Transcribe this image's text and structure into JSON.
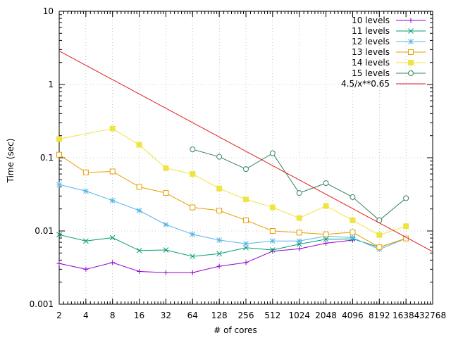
{
  "chart_data": {
    "type": "line",
    "title": "",
    "xlabel": "# of cores",
    "ylabel": "Time (sec)",
    "x_scale": "log2",
    "y_scale": "log10",
    "xlim": [
      2,
      32768
    ],
    "ylim": [
      0.001,
      10
    ],
    "grid": true,
    "legend_position": "top-right",
    "x_ticks": [
      2,
      4,
      8,
      16,
      32,
      64,
      128,
      256,
      512,
      1024,
      2048,
      4096,
      8192,
      16384,
      32768
    ],
    "x_tick_labels": [
      "2",
      "4",
      "8",
      "16",
      "32",
      "64",
      "128",
      "256",
      "512",
      "1024",
      "2048",
      "4096",
      "8192",
      "16384",
      "32768"
    ],
    "y_ticks": [
      0.001,
      0.01,
      0.1,
      1,
      10
    ],
    "y_tick_labels": [
      "0.001",
      "0.01",
      "0.1",
      "1",
      "10"
    ],
    "series": [
      {
        "name": "10 levels",
        "color": "#9400d3",
        "marker": "plus",
        "x": [
          2,
          4,
          8,
          16,
          32,
          64,
          128,
          256,
          512,
          1024,
          2048,
          4096
        ],
        "y": [
          0.0036,
          0.003,
          0.0037,
          0.0028,
          0.0027,
          0.0027,
          0.0033,
          0.0037,
          0.0053,
          0.0057,
          0.0068,
          0.0075
        ]
      },
      {
        "name": "11 levels",
        "color": "#009e73",
        "marker": "cross",
        "x": [
          2,
          4,
          8,
          16,
          32,
          64,
          128,
          256,
          512,
          1024,
          2048,
          4096,
          8192,
          16384
        ],
        "y": [
          0.0089,
          0.0073,
          0.0081,
          0.0054,
          0.0055,
          0.0045,
          0.0049,
          0.0059,
          0.0055,
          0.0066,
          0.0077,
          0.0078,
          0.006,
          0.0079
        ]
      },
      {
        "name": "12 levels",
        "color": "#56b4e9",
        "marker": "star",
        "x": [
          2,
          4,
          8,
          16,
          32,
          64,
          128,
          256,
          512,
          1024,
          2048,
          4096,
          8192,
          16384
        ],
        "y": [
          0.043,
          0.035,
          0.026,
          0.019,
          0.0122,
          0.009,
          0.0075,
          0.0067,
          0.0073,
          0.0073,
          0.0085,
          0.0081,
          0.0056,
          0.0079
        ]
      },
      {
        "name": "13 levels",
        "color": "#e69f00",
        "marker": "square-open",
        "x": [
          2,
          4,
          8,
          16,
          32,
          64,
          128,
          256,
          512,
          1024,
          2048,
          4096,
          8192,
          16384
        ],
        "y": [
          0.11,
          0.063,
          0.065,
          0.04,
          0.033,
          0.021,
          0.019,
          0.014,
          0.01,
          0.0095,
          0.009,
          0.0096,
          0.006,
          0.0079
        ]
      },
      {
        "name": "14 levels",
        "color": "#f0e442",
        "marker": "square-filled",
        "x": [
          2,
          8,
          16,
          32,
          64,
          128,
          256,
          512,
          1024,
          2048,
          4096,
          8192,
          16384
        ],
        "y": [
          0.18,
          0.25,
          0.15,
          0.072,
          0.06,
          0.038,
          0.027,
          0.021,
          0.015,
          0.022,
          0.014,
          0.0088,
          0.0116
        ]
      },
      {
        "name": "15 levels",
        "color": "#31845f",
        "marker": "circle-open",
        "x": [
          64,
          128,
          256,
          512,
          1024,
          2048,
          4096,
          8192,
          16384
        ],
        "y": [
          0.13,
          0.103,
          0.07,
          0.115,
          0.033,
          0.045,
          0.029,
          0.014,
          0.028
        ]
      }
    ],
    "function": {
      "name": "4.5/x**0.65",
      "color": "#e41a1c",
      "coefficient": 4.5,
      "exponent": -0.65
    }
  }
}
